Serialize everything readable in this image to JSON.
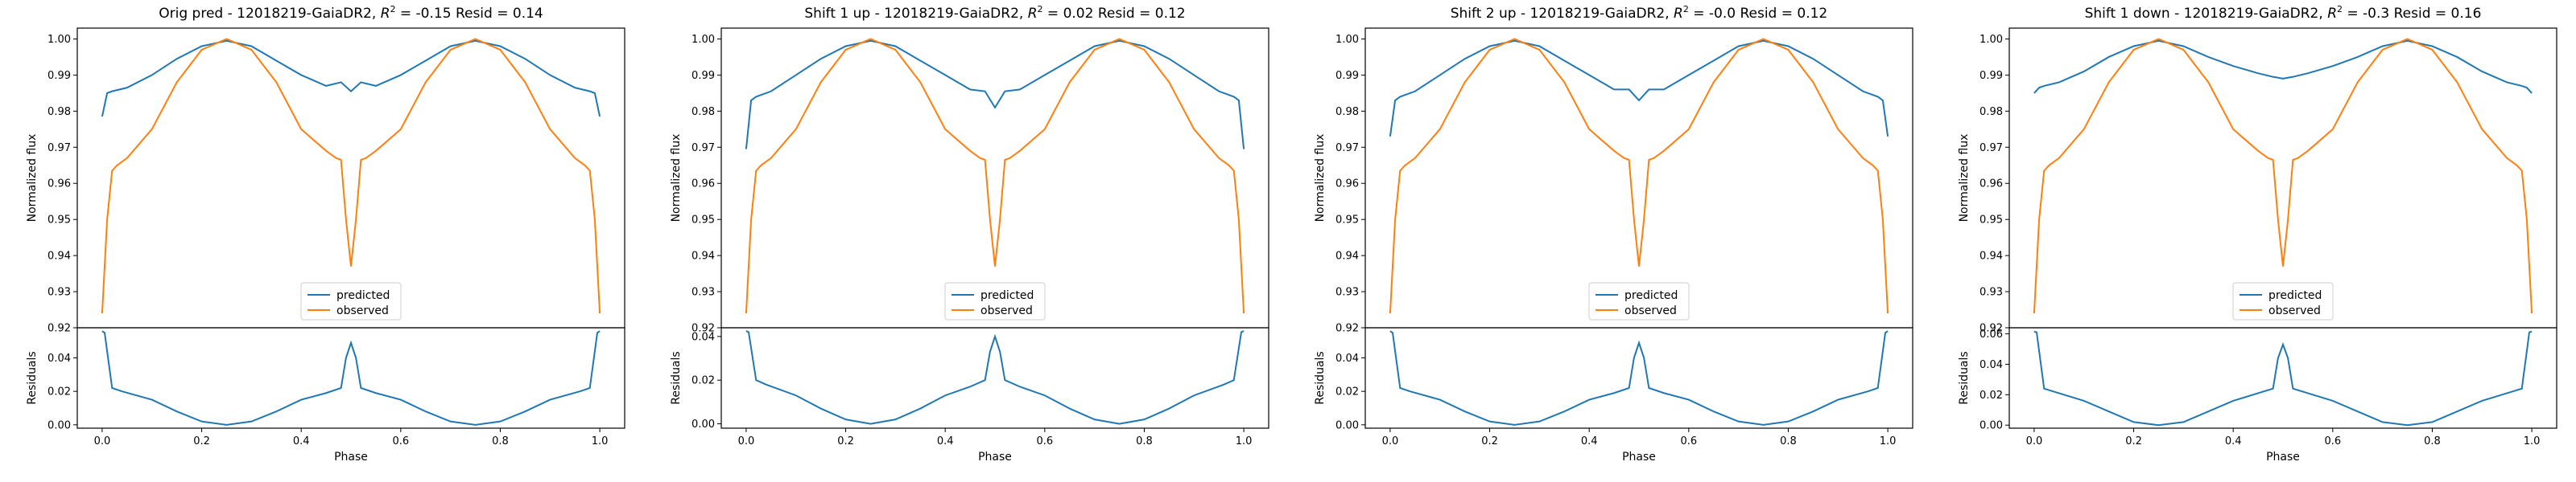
{
  "colors": {
    "predicted": "#1f77b4",
    "observed": "#ff7f0e"
  },
  "chart_data": [
    {
      "type": "line",
      "title_prefix": "Orig pred - 12018219-GaiaDR2, ",
      "title_r2_symbol": "R",
      "title_r2_exp": "2",
      "title_suffix": " = -0.15 Resid = 0.14",
      "xlabel": "Phase",
      "ylabel": "Normalized flux",
      "resid_ylabel": "Residuals",
      "xlim": [
        -0.05,
        1.05
      ],
      "ylim": [
        0.92,
        1.003
      ],
      "resid_ylim": [
        -0.002,
        0.058
      ],
      "xticks": [
        "0.0",
        "0.2",
        "0.4",
        "0.6",
        "0.8",
        "1.0"
      ],
      "yticks": [
        "0.92",
        "0.93",
        "0.94",
        "0.95",
        "0.96",
        "0.97",
        "0.98",
        "0.99",
        "1.00"
      ],
      "resid_yticks": [
        "0.00",
        "0.02",
        "0.04"
      ],
      "legend": {
        "placement": "lower center",
        "entries": [
          "predicted",
          "observed"
        ]
      },
      "series": [
        {
          "name": "predicted",
          "x": [
            0,
            0.01,
            0.02,
            0.05,
            0.1,
            0.15,
            0.2,
            0.25,
            0.3,
            0.35,
            0.4,
            0.45,
            0.48,
            0.5,
            0.52,
            0.55,
            0.6,
            0.65,
            0.7,
            0.75,
            0.8,
            0.85,
            0.9,
            0.95,
            0.98,
            0.99,
            1.0
          ],
          "y": [
            0.9785,
            0.985,
            0.9855,
            0.9865,
            0.99,
            0.9945,
            0.998,
            0.9995,
            0.998,
            0.994,
            0.99,
            0.987,
            0.988,
            0.9855,
            0.988,
            0.987,
            0.99,
            0.994,
            0.998,
            0.9995,
            0.998,
            0.9945,
            0.99,
            0.9865,
            0.9855,
            0.985,
            0.9785
          ]
        },
        {
          "name": "observed",
          "x": [
            0,
            0.01,
            0.02,
            0.03,
            0.05,
            0.1,
            0.15,
            0.2,
            0.25,
            0.3,
            0.35,
            0.4,
            0.45,
            0.47,
            0.48,
            0.49,
            0.5,
            0.51,
            0.52,
            0.53,
            0.55,
            0.6,
            0.65,
            0.7,
            0.75,
            0.8,
            0.85,
            0.9,
            0.95,
            0.97,
            0.98,
            0.99,
            1.0
          ],
          "y": [
            0.924,
            0.95,
            0.9635,
            0.965,
            0.967,
            0.975,
            0.988,
            0.997,
            1.0,
            0.997,
            0.988,
            0.975,
            0.969,
            0.967,
            0.9665,
            0.95,
            0.937,
            0.95,
            0.9665,
            0.967,
            0.969,
            0.975,
            0.988,
            0.997,
            1.0,
            0.997,
            0.988,
            0.975,
            0.967,
            0.965,
            0.9635,
            0.95,
            0.924
          ]
        }
      ],
      "residuals": {
        "name": "residuals",
        "x": [
          0,
          0.005,
          0.02,
          0.04,
          0.1,
          0.15,
          0.2,
          0.25,
          0.3,
          0.35,
          0.4,
          0.45,
          0.48,
          0.49,
          0.5,
          0.51,
          0.52,
          0.55,
          0.6,
          0.65,
          0.7,
          0.75,
          0.8,
          0.85,
          0.9,
          0.96,
          0.98,
          0.995,
          1.0
        ],
        "y": [
          0.056,
          0.055,
          0.022,
          0.02,
          0.015,
          0.008,
          0.002,
          0.0,
          0.002,
          0.008,
          0.015,
          0.019,
          0.022,
          0.04,
          0.049,
          0.04,
          0.022,
          0.019,
          0.015,
          0.008,
          0.002,
          0.0,
          0.002,
          0.008,
          0.015,
          0.02,
          0.022,
          0.055,
          0.056
        ]
      }
    },
    {
      "type": "line",
      "title_prefix": "Shift 1 up - 12018219-GaiaDR2, ",
      "title_r2_symbol": "R",
      "title_r2_exp": "2",
      "title_suffix": " = 0.02 Resid = 0.12",
      "xlabel": "Phase",
      "ylabel": "Normalized flux",
      "resid_ylabel": "Residuals",
      "xlim": [
        -0.05,
        1.05
      ],
      "ylim": [
        0.92,
        1.003
      ],
      "resid_ylim": [
        -0.002,
        0.044
      ],
      "xticks": [
        "0.0",
        "0.2",
        "0.4",
        "0.6",
        "0.8",
        "1.0"
      ],
      "yticks": [
        "0.92",
        "0.93",
        "0.94",
        "0.95",
        "0.96",
        "0.97",
        "0.98",
        "0.99",
        "1.00"
      ],
      "resid_yticks": [
        "0.00",
        "0.02",
        "0.04"
      ],
      "legend": {
        "placement": "lower center",
        "entries": [
          "predicted",
          "observed"
        ]
      },
      "series": [
        {
          "name": "predicted",
          "x": [
            0,
            0.01,
            0.02,
            0.05,
            0.1,
            0.15,
            0.2,
            0.25,
            0.3,
            0.35,
            0.4,
            0.45,
            0.48,
            0.5,
            0.52,
            0.55,
            0.6,
            0.65,
            0.7,
            0.75,
            0.8,
            0.85,
            0.9,
            0.95,
            0.98,
            0.99,
            1.0
          ],
          "y": [
            0.9695,
            0.983,
            0.984,
            0.9855,
            0.99,
            0.9945,
            0.998,
            0.9995,
            0.998,
            0.994,
            0.99,
            0.986,
            0.9855,
            0.981,
            0.9855,
            0.986,
            0.99,
            0.994,
            0.998,
            0.9995,
            0.998,
            0.9945,
            0.99,
            0.9855,
            0.984,
            0.983,
            0.9695
          ]
        },
        {
          "name": "observed",
          "x": [
            0,
            0.01,
            0.02,
            0.03,
            0.05,
            0.1,
            0.15,
            0.2,
            0.25,
            0.3,
            0.35,
            0.4,
            0.45,
            0.47,
            0.48,
            0.49,
            0.5,
            0.51,
            0.52,
            0.53,
            0.55,
            0.6,
            0.65,
            0.7,
            0.75,
            0.8,
            0.85,
            0.9,
            0.95,
            0.97,
            0.98,
            0.99,
            1.0
          ],
          "y": [
            0.924,
            0.95,
            0.9635,
            0.965,
            0.967,
            0.975,
            0.988,
            0.997,
            1.0,
            0.997,
            0.988,
            0.975,
            0.969,
            0.967,
            0.9665,
            0.95,
            0.937,
            0.95,
            0.9665,
            0.967,
            0.969,
            0.975,
            0.988,
            0.997,
            1.0,
            0.997,
            0.988,
            0.975,
            0.967,
            0.965,
            0.9635,
            0.95,
            0.924
          ]
        }
      ],
      "residuals": {
        "name": "residuals",
        "x": [
          0,
          0.005,
          0.02,
          0.04,
          0.1,
          0.15,
          0.2,
          0.25,
          0.3,
          0.35,
          0.4,
          0.45,
          0.48,
          0.49,
          0.5,
          0.51,
          0.52,
          0.55,
          0.6,
          0.65,
          0.7,
          0.75,
          0.8,
          0.85,
          0.9,
          0.96,
          0.98,
          0.995,
          1.0
        ],
        "y": [
          0.0425,
          0.042,
          0.02,
          0.018,
          0.013,
          0.007,
          0.002,
          0.0,
          0.002,
          0.007,
          0.013,
          0.017,
          0.02,
          0.033,
          0.04,
          0.033,
          0.02,
          0.017,
          0.013,
          0.007,
          0.002,
          0.0,
          0.002,
          0.007,
          0.013,
          0.018,
          0.02,
          0.042,
          0.0425
        ]
      }
    },
    {
      "type": "line",
      "title_prefix": "Shift 2 up - 12018219-GaiaDR2, ",
      "title_r2_symbol": "R",
      "title_r2_exp": "2",
      "title_suffix": " = -0.0 Resid = 0.12",
      "xlabel": "Phase",
      "ylabel": "Normalized flux",
      "resid_ylabel": "Residuals",
      "xlim": [
        -0.05,
        1.05
      ],
      "ylim": [
        0.92,
        1.003
      ],
      "resid_ylim": [
        -0.002,
        0.058
      ],
      "xticks": [
        "0.0",
        "0.2",
        "0.4",
        "0.6",
        "0.8",
        "1.0"
      ],
      "yticks": [
        "0.92",
        "0.93",
        "0.94",
        "0.95",
        "0.96",
        "0.97",
        "0.98",
        "0.99",
        "1.00"
      ],
      "resid_yticks": [
        "0.00",
        "0.02",
        "0.04"
      ],
      "legend": {
        "placement": "lower center",
        "entries": [
          "predicted",
          "observed"
        ]
      },
      "series": [
        {
          "name": "predicted",
          "x": [
            0,
            0.01,
            0.02,
            0.05,
            0.1,
            0.15,
            0.2,
            0.25,
            0.3,
            0.35,
            0.4,
            0.45,
            0.48,
            0.5,
            0.52,
            0.55,
            0.6,
            0.65,
            0.7,
            0.75,
            0.8,
            0.85,
            0.9,
            0.95,
            0.98,
            0.99,
            1.0
          ],
          "y": [
            0.973,
            0.983,
            0.984,
            0.9855,
            0.99,
            0.9945,
            0.998,
            0.9995,
            0.998,
            0.994,
            0.99,
            0.986,
            0.986,
            0.983,
            0.986,
            0.986,
            0.99,
            0.994,
            0.998,
            0.9995,
            0.998,
            0.9945,
            0.99,
            0.9855,
            0.984,
            0.983,
            0.973
          ]
        },
        {
          "name": "observed",
          "x": [
            0,
            0.01,
            0.02,
            0.03,
            0.05,
            0.1,
            0.15,
            0.2,
            0.25,
            0.3,
            0.35,
            0.4,
            0.45,
            0.47,
            0.48,
            0.49,
            0.5,
            0.51,
            0.52,
            0.53,
            0.55,
            0.6,
            0.65,
            0.7,
            0.75,
            0.8,
            0.85,
            0.9,
            0.95,
            0.97,
            0.98,
            0.99,
            1.0
          ],
          "y": [
            0.924,
            0.95,
            0.9635,
            0.965,
            0.967,
            0.975,
            0.988,
            0.997,
            1.0,
            0.997,
            0.988,
            0.975,
            0.969,
            0.967,
            0.9665,
            0.95,
            0.937,
            0.95,
            0.9665,
            0.967,
            0.969,
            0.975,
            0.988,
            0.997,
            1.0,
            0.997,
            0.988,
            0.975,
            0.967,
            0.965,
            0.9635,
            0.95,
            0.924
          ]
        }
      ],
      "residuals": {
        "name": "residuals",
        "x": [
          0,
          0.005,
          0.02,
          0.04,
          0.1,
          0.15,
          0.2,
          0.25,
          0.3,
          0.35,
          0.4,
          0.45,
          0.48,
          0.49,
          0.5,
          0.51,
          0.52,
          0.55,
          0.6,
          0.65,
          0.7,
          0.75,
          0.8,
          0.85,
          0.9,
          0.96,
          0.98,
          0.995,
          1.0
        ],
        "y": [
          0.056,
          0.055,
          0.022,
          0.02,
          0.015,
          0.008,
          0.002,
          0.0,
          0.002,
          0.008,
          0.015,
          0.019,
          0.022,
          0.04,
          0.049,
          0.04,
          0.022,
          0.019,
          0.015,
          0.008,
          0.002,
          0.0,
          0.002,
          0.008,
          0.015,
          0.02,
          0.022,
          0.055,
          0.056
        ]
      }
    },
    {
      "type": "line",
      "title_prefix": "Shift 1 down - 12018219-GaiaDR2, ",
      "title_r2_symbol": "R",
      "title_r2_exp": "2",
      "title_suffix": " = -0.3 Resid = 0.16",
      "xlabel": "Phase",
      "ylabel": "Normalized flux",
      "resid_ylabel": "Residuals",
      "xlim": [
        -0.05,
        1.05
      ],
      "ylim": [
        0.92,
        1.003
      ],
      "resid_ylim": [
        -0.002,
        0.064
      ],
      "xticks": [
        "0.0",
        "0.2",
        "0.4",
        "0.6",
        "0.8",
        "1.0"
      ],
      "yticks": [
        "0.92",
        "0.93",
        "0.94",
        "0.95",
        "0.96",
        "0.97",
        "0.98",
        "0.99",
        "1.00"
      ],
      "resid_yticks": [
        "0.00",
        "0.02",
        "0.04",
        "0.06"
      ],
      "legend": {
        "placement": "lower center",
        "entries": [
          "predicted",
          "observed"
        ]
      },
      "series": [
        {
          "name": "predicted",
          "x": [
            0,
            0.01,
            0.02,
            0.05,
            0.1,
            0.15,
            0.2,
            0.25,
            0.3,
            0.35,
            0.4,
            0.45,
            0.48,
            0.5,
            0.52,
            0.55,
            0.6,
            0.65,
            0.7,
            0.75,
            0.8,
            0.85,
            0.9,
            0.95,
            0.98,
            0.99,
            1.0
          ],
          "y": [
            0.985,
            0.9865,
            0.987,
            0.988,
            0.991,
            0.995,
            0.998,
            0.9995,
            0.998,
            0.995,
            0.9925,
            0.9905,
            0.9895,
            0.989,
            0.9895,
            0.9905,
            0.9925,
            0.995,
            0.998,
            0.9995,
            0.998,
            0.995,
            0.991,
            0.988,
            0.987,
            0.9865,
            0.985
          ]
        },
        {
          "name": "observed",
          "x": [
            0,
            0.01,
            0.02,
            0.03,
            0.05,
            0.1,
            0.15,
            0.2,
            0.25,
            0.3,
            0.35,
            0.4,
            0.45,
            0.47,
            0.48,
            0.49,
            0.5,
            0.51,
            0.52,
            0.53,
            0.55,
            0.6,
            0.65,
            0.7,
            0.75,
            0.8,
            0.85,
            0.9,
            0.95,
            0.97,
            0.98,
            0.99,
            1.0
          ],
          "y": [
            0.924,
            0.95,
            0.9635,
            0.965,
            0.967,
            0.975,
            0.988,
            0.997,
            1.0,
            0.997,
            0.988,
            0.975,
            0.969,
            0.967,
            0.9665,
            0.95,
            0.937,
            0.95,
            0.9665,
            0.967,
            0.969,
            0.975,
            0.988,
            0.997,
            1.0,
            0.997,
            0.988,
            0.975,
            0.967,
            0.965,
            0.9635,
            0.95,
            0.924
          ]
        }
      ],
      "residuals": {
        "name": "residuals",
        "x": [
          0,
          0.005,
          0.02,
          0.04,
          0.1,
          0.15,
          0.2,
          0.25,
          0.3,
          0.35,
          0.4,
          0.45,
          0.48,
          0.49,
          0.5,
          0.51,
          0.52,
          0.55,
          0.6,
          0.65,
          0.7,
          0.75,
          0.8,
          0.85,
          0.9,
          0.96,
          0.98,
          0.995,
          1.0
        ],
        "y": [
          0.0615,
          0.061,
          0.024,
          0.022,
          0.016,
          0.009,
          0.002,
          0.0,
          0.002,
          0.009,
          0.016,
          0.021,
          0.024,
          0.044,
          0.053,
          0.044,
          0.024,
          0.021,
          0.016,
          0.009,
          0.002,
          0.0,
          0.002,
          0.009,
          0.016,
          0.022,
          0.024,
          0.061,
          0.0615
        ]
      }
    }
  ]
}
